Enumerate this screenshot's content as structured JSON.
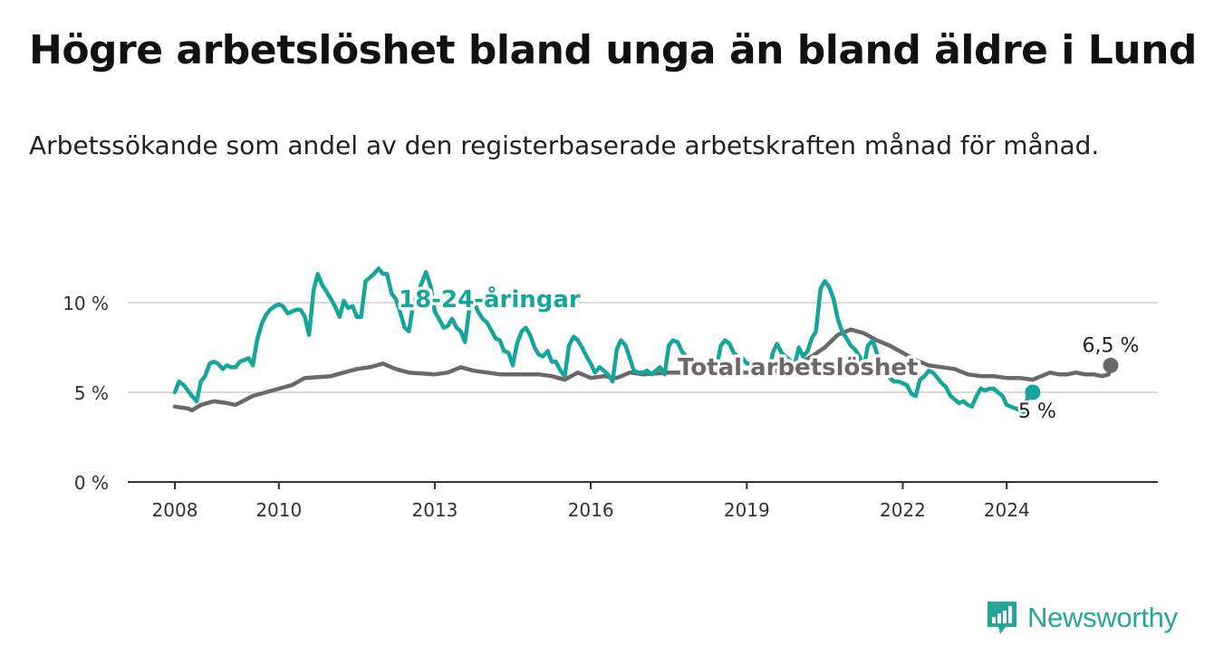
{
  "title": "Högre arbetslöshet bland unga än bland äldre i Lund",
  "subtitle": "Arbetssökande som andel av den registerbaserade arbetskraften månad för månad.",
  "brand": {
    "name": "Newsworthy",
    "color": "#26a69a",
    "icon": "newsworthy-chart-icon"
  },
  "chart_data": {
    "type": "line",
    "title": "Högre arbetslöshet bland unga än bland äldre i Lund",
    "subtitle": "Arbetssökande som andel av den registerbaserade arbetskraften månad för månad.",
    "xlabel": "",
    "ylabel": "",
    "xlim": [
      2007.25,
      2025.25
    ],
    "ylim": [
      0,
      12
    ],
    "x_ticks": [
      2008,
      2010,
      2013,
      2016,
      2019,
      2022,
      2024
    ],
    "x_tick_labels": [
      "2008",
      "2010",
      "2013",
      "2016",
      "2019",
      "2022",
      "2024"
    ],
    "y_ticks": [
      0,
      5,
      10
    ],
    "y_tick_labels": [
      "0 %",
      "5 %",
      "10 %"
    ],
    "grid": "horizontal",
    "legend": "none (series labelled directly on the lines)",
    "series": [
      {
        "name": "Total arbetslöshet",
        "color": "#6b676b",
        "end_label": "6,5 %",
        "points": [
          [
            2008.0,
            4.2
          ],
          [
            2008.25,
            4.1
          ],
          [
            2008.33,
            4.0
          ],
          [
            2008.5,
            4.3
          ],
          [
            2008.75,
            4.5
          ],
          [
            2009.0,
            4.4
          ],
          [
            2009.17,
            4.3
          ],
          [
            2009.5,
            4.8
          ],
          [
            2009.75,
            5.0
          ],
          [
            2010.0,
            5.2
          ],
          [
            2010.25,
            5.4
          ],
          [
            2010.5,
            5.8
          ],
          [
            2011.0,
            5.9
          ],
          [
            2011.25,
            6.1
          ],
          [
            2011.5,
            6.3
          ],
          [
            2011.75,
            6.4
          ],
          [
            2012.0,
            6.6
          ],
          [
            2012.25,
            6.3
          ],
          [
            2012.5,
            6.1
          ],
          [
            2013.0,
            6.0
          ],
          [
            2013.25,
            6.1
          ],
          [
            2013.5,
            6.4
          ],
          [
            2013.75,
            6.2
          ],
          [
            2014.0,
            6.1
          ],
          [
            2014.25,
            6.0
          ],
          [
            2014.5,
            6.0
          ],
          [
            2014.75,
            6.0
          ],
          [
            2015.0,
            6.0
          ],
          [
            2015.25,
            5.9
          ],
          [
            2015.5,
            5.7
          ],
          [
            2015.75,
            6.1
          ],
          [
            2016.0,
            5.8
          ],
          [
            2016.25,
            5.9
          ],
          [
            2016.5,
            5.8
          ],
          [
            2016.75,
            6.1
          ],
          [
            2017.0,
            6.0
          ],
          [
            2017.5,
            6.1
          ],
          [
            2018.0,
            6.1
          ],
          [
            2018.5,
            6.1
          ],
          [
            2019.0,
            6.1
          ],
          [
            2019.5,
            6.1
          ],
          [
            2019.75,
            6.5
          ],
          [
            2020.0,
            6.6
          ],
          [
            2020.25,
            7.0
          ],
          [
            2020.5,
            7.5
          ],
          [
            2020.75,
            8.2
          ],
          [
            2021.0,
            8.5
          ],
          [
            2021.25,
            8.3
          ],
          [
            2021.5,
            7.9
          ],
          [
            2021.75,
            7.6
          ],
          [
            2022.0,
            7.2
          ],
          [
            2022.25,
            6.8
          ],
          [
            2022.5,
            6.5
          ],
          [
            2022.75,
            6.4
          ],
          [
            2023.0,
            6.3
          ],
          [
            2023.25,
            6.0
          ],
          [
            2023.5,
            5.9
          ],
          [
            2023.75,
            5.9
          ],
          [
            2024.0,
            5.8
          ],
          [
            2024.25,
            5.8
          ],
          [
            2024.5,
            5.7
          ],
          [
            2024.75,
            6.0
          ],
          [
            2024.83,
            6.1
          ],
          [
            2025.0,
            6.0
          ],
          [
            2025.17,
            6.0
          ],
          [
            2025.33,
            6.1
          ],
          [
            2025.5,
            6.0
          ],
          [
            2025.67,
            6.0
          ],
          [
            2025.83,
            5.9
          ],
          [
            2025.96,
            6.0
          ],
          [
            2026.0,
            6.5
          ]
        ]
      },
      {
        "name": "18-24-åringar",
        "color": "#16a59a",
        "end_label": "5 %",
        "points": [
          [
            2008.0,
            5.0
          ],
          [
            2008.08,
            5.6
          ],
          [
            2008.17,
            5.4
          ],
          [
            2008.25,
            5.1
          ],
          [
            2008.33,
            4.8
          ],
          [
            2008.42,
            4.5
          ],
          [
            2008.5,
            5.6
          ],
          [
            2008.58,
            5.9
          ],
          [
            2008.67,
            6.6
          ],
          [
            2008.75,
            6.7
          ],
          [
            2008.83,
            6.6
          ],
          [
            2008.92,
            6.3
          ],
          [
            2009.0,
            6.5
          ],
          [
            2009.08,
            6.4
          ],
          [
            2009.17,
            6.4
          ],
          [
            2009.25,
            6.7
          ],
          [
            2009.33,
            6.8
          ],
          [
            2009.42,
            6.9
          ],
          [
            2009.5,
            6.5
          ],
          [
            2009.58,
            7.9
          ],
          [
            2009.67,
            8.8
          ],
          [
            2009.75,
            9.3
          ],
          [
            2009.83,
            9.6
          ],
          [
            2009.92,
            9.8
          ],
          [
            2010.0,
            9.9
          ],
          [
            2010.08,
            9.8
          ],
          [
            2010.17,
            9.4
          ],
          [
            2010.25,
            9.5
          ],
          [
            2010.33,
            9.6
          ],
          [
            2010.42,
            9.6
          ],
          [
            2010.5,
            9.2
          ],
          [
            2010.58,
            8.2
          ],
          [
            2010.67,
            10.7
          ],
          [
            2010.75,
            11.6
          ],
          [
            2010.83,
            11.0
          ],
          [
            2010.92,
            10.6
          ],
          [
            2011.0,
            10.2
          ],
          [
            2011.08,
            9.8
          ],
          [
            2011.17,
            9.2
          ],
          [
            2011.25,
            10.1
          ],
          [
            2011.33,
            9.7
          ],
          [
            2011.42,
            9.8
          ],
          [
            2011.5,
            9.2
          ],
          [
            2011.58,
            9.2
          ],
          [
            2011.67,
            11.2
          ],
          [
            2011.75,
            11.4
          ],
          [
            2011.83,
            11.6
          ],
          [
            2011.92,
            11.9
          ],
          [
            2012.0,
            11.6
          ],
          [
            2012.08,
            11.6
          ],
          [
            2012.17,
            10.5
          ],
          [
            2012.25,
            10.2
          ],
          [
            2012.33,
            9.5
          ],
          [
            2012.42,
            8.6
          ],
          [
            2012.5,
            8.4
          ],
          [
            2012.58,
            9.8
          ],
          [
            2012.67,
            10.5
          ],
          [
            2012.75,
            11.1
          ],
          [
            2012.83,
            11.7
          ],
          [
            2012.92,
            10.9
          ],
          [
            2013.0,
            9.5
          ],
          [
            2013.08,
            9.1
          ],
          [
            2013.17,
            8.6
          ],
          [
            2013.25,
            8.7
          ],
          [
            2013.33,
            9.1
          ],
          [
            2013.42,
            8.6
          ],
          [
            2013.5,
            8.4
          ],
          [
            2013.58,
            7.8
          ],
          [
            2013.67,
            9.8
          ],
          [
            2013.75,
            10.1
          ],
          [
            2013.83,
            9.5
          ],
          [
            2013.92,
            9.1
          ],
          [
            2014.0,
            8.9
          ],
          [
            2014.08,
            8.5
          ],
          [
            2014.17,
            8.0
          ],
          [
            2014.25,
            7.9
          ],
          [
            2014.33,
            7.3
          ],
          [
            2014.42,
            7.2
          ],
          [
            2014.5,
            6.5
          ],
          [
            2014.58,
            7.7
          ],
          [
            2014.67,
            8.4
          ],
          [
            2014.75,
            8.6
          ],
          [
            2014.83,
            8.2
          ],
          [
            2014.92,
            7.5
          ],
          [
            2015.0,
            7.1
          ],
          [
            2015.08,
            7.0
          ],
          [
            2015.17,
            7.3
          ],
          [
            2015.25,
            6.7
          ],
          [
            2015.33,
            6.7
          ],
          [
            2015.42,
            6.2
          ],
          [
            2015.5,
            5.9
          ],
          [
            2015.58,
            7.6
          ],
          [
            2015.67,
            8.1
          ],
          [
            2015.75,
            7.9
          ],
          [
            2015.83,
            7.5
          ],
          [
            2015.92,
            7.0
          ],
          [
            2016.0,
            6.6
          ],
          [
            2016.08,
            6.1
          ],
          [
            2016.17,
            6.4
          ],
          [
            2016.25,
            6.2
          ],
          [
            2016.33,
            6.0
          ],
          [
            2016.42,
            5.6
          ],
          [
            2016.5,
            7.4
          ],
          [
            2016.58,
            7.9
          ],
          [
            2016.67,
            7.6
          ],
          [
            2016.75,
            6.9
          ],
          [
            2016.83,
            6.2
          ],
          [
            2016.92,
            6.1
          ],
          [
            2017.0,
            6.1
          ],
          [
            2017.08,
            6.2
          ],
          [
            2017.17,
            6.0
          ],
          [
            2017.25,
            6.2
          ],
          [
            2017.33,
            6.4
          ],
          [
            2017.42,
            6.0
          ],
          [
            2017.5,
            7.6
          ],
          [
            2017.58,
            7.9
          ],
          [
            2017.67,
            7.8
          ],
          [
            2017.75,
            7.3
          ],
          [
            2017.83,
            7.0
          ],
          [
            2017.92,
            6.8
          ],
          [
            2018.0,
            6.5
          ],
          [
            2018.08,
            6.4
          ],
          [
            2018.17,
            6.3
          ],
          [
            2018.25,
            6.2
          ],
          [
            2018.33,
            6.7
          ],
          [
            2018.42,
            6.4
          ],
          [
            2018.5,
            7.6
          ],
          [
            2018.58,
            7.9
          ],
          [
            2018.67,
            7.7
          ],
          [
            2018.75,
            7.2
          ],
          [
            2018.83,
            7.0
          ],
          [
            2018.92,
            6.9
          ],
          [
            2019.0,
            6.6
          ],
          [
            2019.08,
            6.6
          ],
          [
            2019.17,
            6.3
          ],
          [
            2019.25,
            6.0
          ],
          [
            2019.33,
            6.2
          ],
          [
            2019.42,
            6.0
          ],
          [
            2019.5,
            7.2
          ],
          [
            2019.58,
            7.7
          ],
          [
            2019.67,
            7.2
          ],
          [
            2019.75,
            7.0
          ],
          [
            2019.83,
            6.8
          ],
          [
            2019.92,
            6.5
          ],
          [
            2020.0,
            7.5
          ],
          [
            2020.08,
            7.0
          ],
          [
            2020.17,
            7.3
          ],
          [
            2020.25,
            8.0
          ],
          [
            2020.33,
            8.4
          ],
          [
            2020.42,
            10.8
          ],
          [
            2020.5,
            11.2
          ],
          [
            2020.58,
            10.9
          ],
          [
            2020.67,
            10.2
          ],
          [
            2020.75,
            9.1
          ],
          [
            2020.83,
            8.4
          ],
          [
            2020.92,
            8.0
          ],
          [
            2021.0,
            7.6
          ],
          [
            2021.08,
            7.4
          ],
          [
            2021.17,
            7.0
          ],
          [
            2021.25,
            6.4
          ],
          [
            2021.33,
            7.6
          ],
          [
            2021.42,
            7.9
          ],
          [
            2021.5,
            7.2
          ],
          [
            2021.58,
            6.3
          ],
          [
            2021.67,
            6.2
          ],
          [
            2021.75,
            5.8
          ],
          [
            2021.83,
            5.6
          ],
          [
            2021.92,
            5.6
          ],
          [
            2022.0,
            5.5
          ],
          [
            2022.08,
            5.4
          ],
          [
            2022.17,
            4.9
          ],
          [
            2022.25,
            4.8
          ],
          [
            2022.33,
            5.7
          ],
          [
            2022.42,
            5.9
          ],
          [
            2022.5,
            6.2
          ],
          [
            2022.58,
            6.1
          ],
          [
            2022.67,
            5.8
          ],
          [
            2022.75,
            5.5
          ],
          [
            2022.83,
            5.3
          ],
          [
            2022.92,
            4.8
          ],
          [
            2023.0,
            4.6
          ],
          [
            2023.08,
            4.4
          ],
          [
            2023.17,
            4.5
          ],
          [
            2023.25,
            4.3
          ],
          [
            2023.33,
            4.2
          ],
          [
            2023.42,
            4.8
          ],
          [
            2023.5,
            5.2
          ],
          [
            2023.58,
            5.1
          ],
          [
            2023.67,
            5.2
          ],
          [
            2023.75,
            5.2
          ],
          [
            2023.83,
            5.0
          ],
          [
            2023.92,
            4.8
          ],
          [
            2024.0,
            4.3
          ],
          [
            2024.08,
            4.2
          ],
          [
            2024.17,
            4.1
          ],
          [
            2024.25,
            4.0
          ],
          [
            2024.33,
            3.9
          ],
          [
            2024.42,
            4.9
          ],
          [
            2024.5,
            5.0
          ]
        ]
      }
    ],
    "series_label_positions": "inline"
  }
}
